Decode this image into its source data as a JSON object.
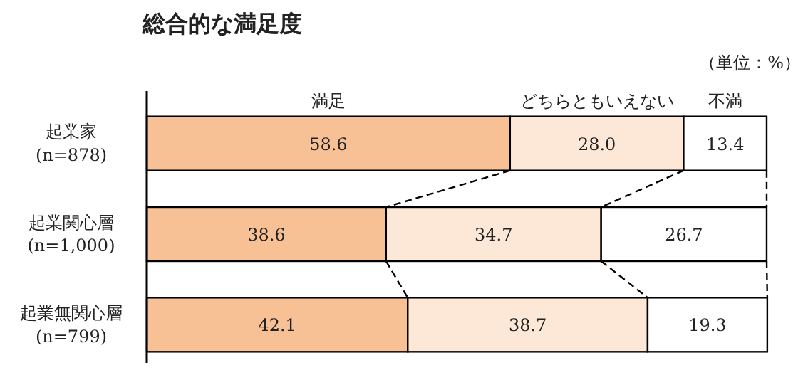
{
  "chart_data": {
    "type": "bar",
    "orientation": "horizontal",
    "stacked": true,
    "tick_labels": "y",
    "title": "総合的な満足度",
    "annotations": [
      "（単位：%）"
    ],
    "categories": [
      "起業家\n(n=878)",
      "起業関心層\n(n=1,000)",
      "起業無関心層\n(n=799)"
    ],
    "xlim": [
      0,
      100
    ],
    "series": [
      {
        "name": "満足",
        "color": "#f8c095",
        "values": [
          58.6,
          38.6,
          42.1
        ],
        "value_labels": [
          "58.6",
          "38.6",
          "42.1"
        ]
      },
      {
        "name": "どちらともいえない",
        "color": "#fde8d8",
        "values": [
          28.0,
          34.7,
          38.7
        ],
        "value_labels": [
          "28.0",
          "34.7",
          "38.7"
        ]
      },
      {
        "name": "不満",
        "color": "#ffffff",
        "values": [
          13.4,
          26.7,
          19.3
        ],
        "value_labels": [
          "13.4",
          "26.7",
          "19.3"
        ]
      }
    ]
  }
}
